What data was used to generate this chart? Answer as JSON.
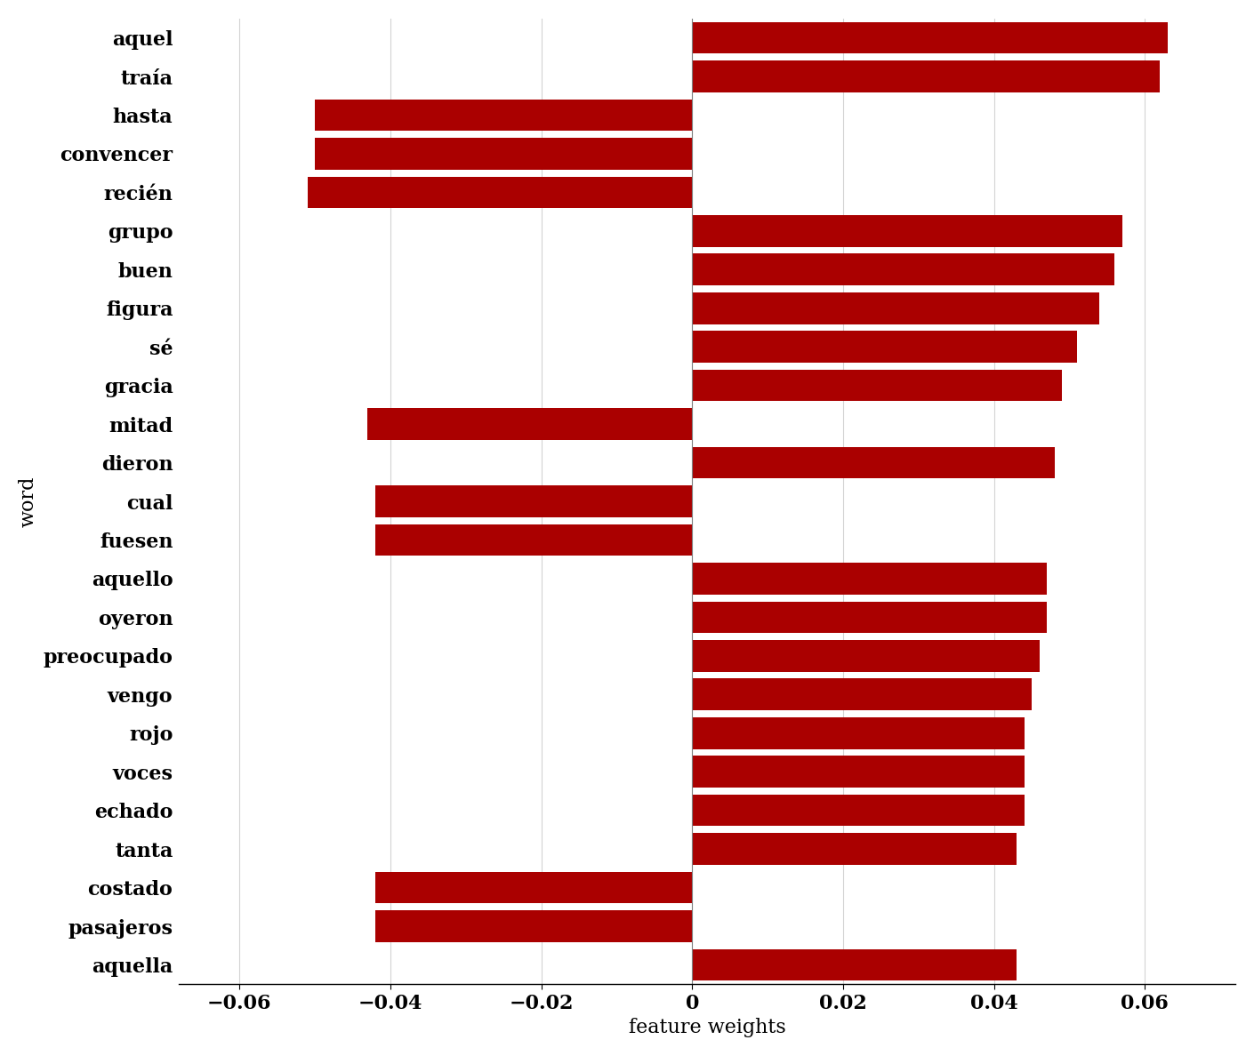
{
  "words": [
    "aquel",
    "traía",
    "hasta",
    "convencer",
    "recién",
    "grupo",
    "buen",
    "figura",
    "sé",
    "gracia",
    "mitad",
    "dieron",
    "cual",
    "fuesen",
    "aquello",
    "oyeron",
    "preocupado",
    "vengo",
    "rojo",
    "voces",
    "echado",
    "tanta",
    "costado",
    "pasajeros",
    "aquella"
  ],
  "values": [
    0.063,
    0.062,
    -0.05,
    -0.05,
    -0.051,
    0.057,
    0.056,
    0.054,
    0.051,
    0.049,
    -0.043,
    0.048,
    -0.042,
    -0.042,
    0.047,
    0.047,
    0.046,
    0.045,
    0.044,
    0.044,
    0.044,
    0.043,
    -0.042,
    -0.042,
    0.043
  ],
  "bar_color": "#aa0000",
  "xlabel": "feature weights",
  "ylabel": "word",
  "xlim": [
    -0.068,
    0.072
  ],
  "xticks": [
    -0.06,
    -0.04,
    -0.02,
    0.0,
    0.02,
    0.04,
    0.06
  ],
  "xtick_labels": [
    "−0.06",
    "−0.04",
    "−0.02",
    "0",
    "0.02",
    "0.04",
    "0.06"
  ],
  "label_fontsize": 16,
  "tick_fontsize": 16,
  "bar_height": 0.82
}
